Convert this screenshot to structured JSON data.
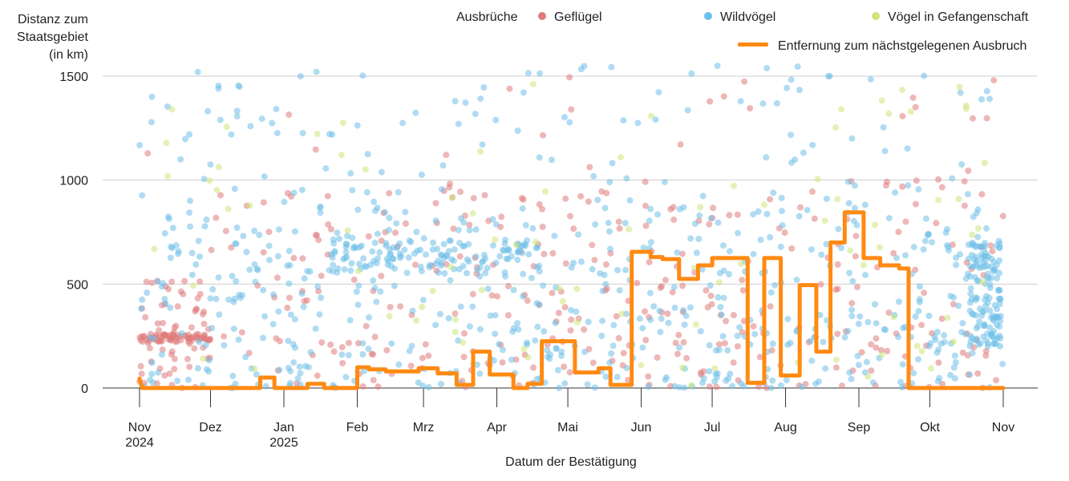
{
  "chart_data": {
    "type": "scatter",
    "ylabel_lines": [
      "Distanz zum",
      "Staatsgebiet",
      "(in km)"
    ],
    "xlabel": "Datum der Bestätigung",
    "ylim": [
      0,
      1550
    ],
    "yticks": [
      {
        "value": 0,
        "label": "0"
      },
      {
        "value": 500,
        "label": "500"
      },
      {
        "value": 1000,
        "label": "1000"
      },
      {
        "value": 1500,
        "label": "1500"
      }
    ],
    "xlim": [
      0,
      365
    ],
    "xticks": [
      {
        "day": 0,
        "label": "Nov",
        "sub": "2024"
      },
      {
        "day": 30,
        "label": "Dez",
        "sub": ""
      },
      {
        "day": 61,
        "label": "Jan",
        "sub": "2025"
      },
      {
        "day": 92,
        "label": "Feb",
        "sub": ""
      },
      {
        "day": 120,
        "label": "Mrz",
        "sub": ""
      },
      {
        "day": 151,
        "label": "Apr",
        "sub": ""
      },
      {
        "day": 181,
        "label": "Mai",
        "sub": ""
      },
      {
        "day": 212,
        "label": "Jun",
        "sub": ""
      },
      {
        "day": 242,
        "label": "Jul",
        "sub": ""
      },
      {
        "day": 273,
        "label": "Aug",
        "sub": ""
      },
      {
        "day": 304,
        "label": "Sep",
        "sub": ""
      },
      {
        "day": 334,
        "label": "Okt",
        "sub": ""
      },
      {
        "day": 365,
        "label": "Nov",
        "sub": ""
      }
    ],
    "legend": {
      "title": "Ausbrüche",
      "items": [
        {
          "label": "Geflügel",
          "color": "#e07b7b"
        },
        {
          "label": "Wildvögel",
          "color": "#6fc0e8"
        },
        {
          "label": "Vögel in Gefangenschaft",
          "color": "#cde67a"
        }
      ],
      "line_label": "Entfernung zum nächstgelegenen Ausbruch",
      "line_color": "#ff8a12"
    },
    "scatter_density": [
      {
        "series": "Geflügel",
        "day_range": [
          0,
          30
        ],
        "y_range": [
          0,
          520
        ],
        "count": 130,
        "cluster": [
          220,
          260
        ]
      },
      {
        "series": "Geflügel",
        "day_range": [
          30,
          365
        ],
        "y_range": [
          0,
          1000
        ],
        "count": 330
      },
      {
        "series": "Geflügel",
        "day_range": [
          0,
          365
        ],
        "y_range": [
          1000,
          1500
        ],
        "count": 22
      },
      {
        "series": "Wildvögel",
        "day_range": [
          0,
          365
        ],
        "y_range": [
          0,
          900
        ],
        "count": 560
      },
      {
        "series": "Wildvögel",
        "day_range": [
          80,
          170
        ],
        "y_range": [
          550,
          720
        ],
        "count": 120
      },
      {
        "series": "Wildvögel",
        "day_range": [
          0,
          365
        ],
        "y_range": [
          900,
          1550
        ],
        "count": 120
      },
      {
        "series": "Wildvögel",
        "day_range": [
          350,
          364
        ],
        "y_range": [
          200,
          700
        ],
        "count": 120
      },
      {
        "series": "Vögel in Gefangenschaft",
        "day_range": [
          0,
          365
        ],
        "y_range": [
          0,
          1500
        ],
        "count": 90
      }
    ],
    "line_series": {
      "name": "Entfernung zum nächstgelegenen Ausbruch",
      "points": [
        [
          0,
          45
        ],
        [
          1,
          0
        ],
        [
          51,
          0
        ],
        [
          51,
          50
        ],
        [
          57,
          50
        ],
        [
          57,
          0
        ],
        [
          71,
          0
        ],
        [
          71,
          20
        ],
        [
          78,
          20
        ],
        [
          78,
          0
        ],
        [
          92,
          0
        ],
        [
          92,
          100
        ],
        [
          97,
          100
        ],
        [
          97,
          90
        ],
        [
          104,
          90
        ],
        [
          104,
          80
        ],
        [
          118,
          80
        ],
        [
          118,
          95
        ],
        [
          126,
          95
        ],
        [
          126,
          70
        ],
        [
          134,
          70
        ],
        [
          134,
          15
        ],
        [
          141,
          15
        ],
        [
          141,
          175
        ],
        [
          148,
          175
        ],
        [
          148,
          65
        ],
        [
          158,
          65
        ],
        [
          158,
          0
        ],
        [
          164,
          0
        ],
        [
          164,
          20
        ],
        [
          170,
          20
        ],
        [
          170,
          225
        ],
        [
          184,
          225
        ],
        [
          184,
          75
        ],
        [
          194,
          75
        ],
        [
          194,
          95
        ],
        [
          199,
          95
        ],
        [
          199,
          15
        ],
        [
          208,
          15
        ],
        [
          208,
          655
        ],
        [
          216,
          655
        ],
        [
          216,
          630
        ],
        [
          221,
          630
        ],
        [
          221,
          620
        ],
        [
          228,
          620
        ],
        [
          228,
          525
        ],
        [
          236,
          525
        ],
        [
          236,
          590
        ],
        [
          242,
          590
        ],
        [
          242,
          625
        ],
        [
          257,
          625
        ],
        [
          257,
          25
        ],
        [
          264,
          25
        ],
        [
          264,
          625
        ],
        [
          271,
          625
        ],
        [
          271,
          60
        ],
        [
          279,
          60
        ],
        [
          279,
          495
        ],
        [
          286,
          495
        ],
        [
          286,
          175
        ],
        [
          292,
          175
        ],
        [
          292,
          700
        ],
        [
          298,
          700
        ],
        [
          298,
          845
        ],
        [
          306,
          845
        ],
        [
          306,
          625
        ],
        [
          313,
          625
        ],
        [
          313,
          590
        ],
        [
          321,
          590
        ],
        [
          321,
          575
        ],
        [
          325,
          575
        ],
        [
          325,
          0
        ],
        [
          365,
          0
        ]
      ]
    }
  }
}
